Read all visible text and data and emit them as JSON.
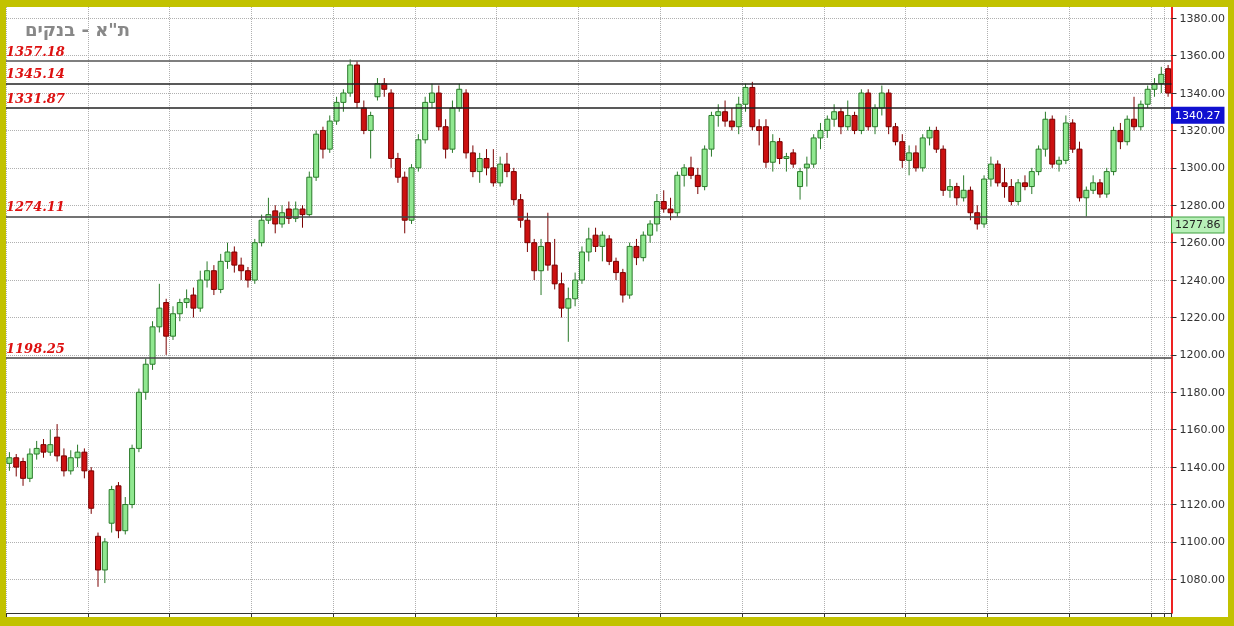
{
  "chart_data": {
    "type": "candlestick",
    "title": "ת\"א - בנקים",
    "categories": [
      null,
      null,
      null,
      null,
      null,
      null,
      null,
      null,
      null,
      null,
      null,
      null,
      null,
      null,
      null,
      null,
      null,
      null,
      null,
      null,
      null,
      null,
      null,
      null,
      null,
      null,
      null,
      null,
      null,
      null,
      null,
      null,
      null,
      null,
      null,
      null,
      null,
      null,
      null,
      null,
      null,
      null,
      null,
      null,
      null,
      null,
      null,
      null,
      null,
      null,
      null,
      null,
      null,
      null,
      null,
      null,
      null,
      null,
      null,
      null,
      null,
      null,
      null,
      null,
      null,
      null,
      null,
      null,
      null,
      null,
      null,
      null,
      null,
      null,
      null,
      null,
      null,
      null,
      null,
      null,
      null,
      null,
      null,
      null,
      null,
      null,
      null,
      null,
      null,
      null,
      null,
      null,
      null,
      null,
      null,
      null,
      null,
      null,
      null,
      null,
      null,
      null,
      null,
      null,
      null,
      null,
      null,
      null,
      null,
      null,
      null,
      null,
      null,
      null,
      null,
      null,
      null,
      null,
      null,
      null,
      null,
      null,
      null,
      null,
      null,
      null,
      null,
      null,
      null,
      null,
      null,
      null,
      null,
      null,
      null,
      null,
      null,
      null,
      null,
      null,
      null,
      null,
      null,
      null,
      null,
      null,
      null,
      null,
      null,
      null,
      null,
      null,
      null,
      null,
      null,
      null,
      null,
      null,
      null,
      null,
      null,
      null,
      null,
      null,
      null,
      null,
      null,
      null,
      null,
      null,
      null
    ],
    "ohlc": [
      [
        1142,
        1148,
        1138,
        1145
      ],
      [
        1145,
        1147,
        1135,
        1140
      ],
      [
        1143,
        1145,
        1130,
        1134
      ],
      [
        1134,
        1150,
        1132,
        1147
      ],
      [
        1147,
        1154,
        1144,
        1150
      ],
      [
        1152,
        1155,
        1145,
        1148
      ],
      [
        1148,
        1160,
        1146,
        1152
      ],
      [
        1156,
        1163,
        1143,
        1146
      ],
      [
        1146,
        1150,
        1135,
        1138
      ],
      [
        1138,
        1149,
        1136,
        1145
      ],
      [
        1145,
        1152,
        1140,
        1148
      ],
      [
        1148,
        1150,
        1134,
        1138
      ],
      [
        1138,
        1140,
        1115,
        1118
      ],
      [
        1103,
        1105,
        1076,
        1085
      ],
      [
        1085,
        1102,
        1078,
        1100
      ],
      [
        1110,
        1130,
        1105,
        1128
      ],
      [
        1130,
        1132,
        1102,
        1106
      ],
      [
        1106,
        1124,
        1104,
        1120
      ],
      [
        1120,
        1152,
        1118,
        1150
      ],
      [
        1150,
        1182,
        1148,
        1180
      ],
      [
        1180,
        1198,
        1176,
        1195
      ],
      [
        1195,
        1218,
        1192,
        1215
      ],
      [
        1215,
        1238,
        1212,
        1225
      ],
      [
        1228,
        1230,
        1200,
        1210
      ],
      [
        1210,
        1226,
        1208,
        1222
      ],
      [
        1222,
        1230,
        1218,
        1228
      ],
      [
        1228,
        1235,
        1225,
        1230
      ],
      [
        1232,
        1236,
        1220,
        1225
      ],
      [
        1225,
        1245,
        1223,
        1240
      ],
      [
        1240,
        1250,
        1236,
        1245
      ],
      [
        1245,
        1248,
        1232,
        1235
      ],
      [
        1235,
        1254,
        1233,
        1250
      ],
      [
        1250,
        1260,
        1246,
        1255
      ],
      [
        1255,
        1258,
        1244,
        1248
      ],
      [
        1248,
        1252,
        1240,
        1245
      ],
      [
        1245,
        1247,
        1236,
        1240
      ],
      [
        1240,
        1262,
        1238,
        1260
      ],
      [
        1260,
        1275,
        1258,
        1272
      ],
      [
        1272,
        1284,
        1270,
        1275
      ],
      [
        1277,
        1280,
        1265,
        1270
      ],
      [
        1270,
        1280,
        1268,
        1276
      ],
      [
        1278,
        1282,
        1270,
        1273
      ],
      [
        1273,
        1282,
        1271,
        1278
      ],
      [
        1278,
        1280,
        1268,
        1275
      ],
      [
        1275,
        1298,
        1274,
        1295
      ],
      [
        1295,
        1320,
        1293,
        1318
      ],
      [
        1320,
        1322,
        1305,
        1310
      ],
      [
        1310,
        1328,
        1308,
        1325
      ],
      [
        1325,
        1338,
        1323,
        1335
      ],
      [
        1335,
        1342,
        1330,
        1340
      ],
      [
        1340,
        1358,
        1338,
        1355
      ],
      [
        1355,
        1357,
        1332,
        1335
      ],
      [
        1332,
        1336,
        1318,
        1320
      ],
      [
        1320,
        1330,
        1305,
        1328
      ],
      [
        1338,
        1348,
        1336,
        1345
      ],
      [
        1345,
        1348,
        1338,
        1342
      ],
      [
        1340,
        1342,
        1300,
        1305
      ],
      [
        1305,
        1308,
        1292,
        1295
      ],
      [
        1295,
        1298,
        1265,
        1272
      ],
      [
        1272,
        1302,
        1270,
        1300
      ],
      [
        1300,
        1318,
        1298,
        1315
      ],
      [
        1315,
        1338,
        1313,
        1335
      ],
      [
        1335,
        1345,
        1332,
        1340
      ],
      [
        1340,
        1344,
        1320,
        1322
      ],
      [
        1322,
        1326,
        1305,
        1310
      ],
      [
        1310,
        1336,
        1308,
        1332
      ],
      [
        1332,
        1345,
        1330,
        1342
      ],
      [
        1340,
        1342,
        1305,
        1308
      ],
      [
        1308,
        1312,
        1295,
        1298
      ],
      [
        1298,
        1308,
        1292,
        1305
      ],
      [
        1305,
        1310,
        1296,
        1300
      ],
      [
        1300,
        1310,
        1290,
        1292
      ],
      [
        1292,
        1306,
        1290,
        1302
      ],
      [
        1302,
        1308,
        1295,
        1298
      ],
      [
        1298,
        1300,
        1280,
        1283
      ],
      [
        1283,
        1286,
        1268,
        1272
      ],
      [
        1272,
        1276,
        1255,
        1260
      ],
      [
        1260,
        1262,
        1240,
        1245
      ],
      [
        1245,
        1262,
        1232,
        1258
      ],
      [
        1260,
        1276,
        1245,
        1248
      ],
      [
        1248,
        1262,
        1235,
        1238
      ],
      [
        1238,
        1244,
        1220,
        1225
      ],
      [
        1225,
        1236,
        1207,
        1230
      ],
      [
        1230,
        1244,
        1226,
        1240
      ],
      [
        1240,
        1258,
        1238,
        1255
      ],
      [
        1255,
        1268,
        1250,
        1262
      ],
      [
        1264,
        1268,
        1255,
        1258
      ],
      [
        1258,
        1266,
        1250,
        1264
      ],
      [
        1262,
        1264,
        1248,
        1250
      ],
      [
        1250,
        1252,
        1240,
        1244
      ],
      [
        1244,
        1246,
        1228,
        1232
      ],
      [
        1232,
        1260,
        1230,
        1258
      ],
      [
        1258,
        1262,
        1248,
        1252
      ],
      [
        1252,
        1266,
        1250,
        1264
      ],
      [
        1264,
        1272,
        1260,
        1270
      ],
      [
        1270,
        1286,
        1266,
        1282
      ],
      [
        1282,
        1288,
        1276,
        1278
      ],
      [
        1278,
        1284,
        1272,
        1276
      ],
      [
        1276,
        1298,
        1274,
        1296
      ],
      [
        1296,
        1302,
        1290,
        1300
      ],
      [
        1300,
        1306,
        1294,
        1296
      ],
      [
        1296,
        1300,
        1286,
        1290
      ],
      [
        1290,
        1312,
        1288,
        1310
      ],
      [
        1310,
        1330,
        1306,
        1328
      ],
      [
        1328,
        1334,
        1322,
        1330
      ],
      [
        1330,
        1336,
        1322,
        1325
      ],
      [
        1325,
        1332,
        1320,
        1322
      ],
      [
        1322,
        1338,
        1318,
        1334
      ],
      [
        1334,
        1345,
        1330,
        1343
      ],
      [
        1343,
        1346,
        1320,
        1322
      ],
      [
        1322,
        1326,
        1312,
        1320
      ],
      [
        1322,
        1326,
        1300,
        1303
      ],
      [
        1303,
        1318,
        1298,
        1314
      ],
      [
        1314,
        1316,
        1302,
        1305
      ],
      [
        1305,
        1308,
        1298,
        1306
      ],
      [
        1308,
        1310,
        1300,
        1302
      ],
      [
        1290,
        1300,
        1283,
        1298
      ],
      [
        1300,
        1306,
        1290,
        1302
      ],
      [
        1302,
        1318,
        1300,
        1316
      ],
      [
        1316,
        1324,
        1310,
        1320
      ],
      [
        1320,
        1328,
        1316,
        1326
      ],
      [
        1326,
        1334,
        1322,
        1330
      ],
      [
        1330,
        1332,
        1318,
        1322
      ],
      [
        1322,
        1336,
        1320,
        1328
      ],
      [
        1328,
        1330,
        1318,
        1320
      ],
      [
        1320,
        1342,
        1318,
        1340
      ],
      [
        1340,
        1342,
        1320,
        1322
      ],
      [
        1322,
        1334,
        1318,
        1332
      ],
      [
        1332,
        1344,
        1328,
        1340
      ],
      [
        1340,
        1342,
        1318,
        1322
      ],
      [
        1322,
        1324,
        1312,
        1314
      ],
      [
        1314,
        1318,
        1300,
        1304
      ],
      [
        1304,
        1312,
        1296,
        1308
      ],
      [
        1308,
        1312,
        1298,
        1300
      ],
      [
        1300,
        1318,
        1298,
        1316
      ],
      [
        1316,
        1322,
        1312,
        1320
      ],
      [
        1320,
        1322,
        1308,
        1310
      ],
      [
        1310,
        1312,
        1285,
        1288
      ],
      [
        1288,
        1294,
        1284,
        1290
      ],
      [
        1290,
        1292,
        1280,
        1284
      ],
      [
        1284,
        1296,
        1282,
        1288
      ],
      [
        1288,
        1290,
        1272,
        1276
      ],
      [
        1276,
        1280,
        1267,
        1270
      ],
      [
        1270,
        1296,
        1268,
        1294
      ],
      [
        1294,
        1306,
        1290,
        1302
      ],
      [
        1302,
        1304,
        1290,
        1292
      ],
      [
        1292,
        1300,
        1284,
        1290
      ],
      [
        1290,
        1294,
        1280,
        1282
      ],
      [
        1282,
        1294,
        1280,
        1292
      ],
      [
        1292,
        1296,
        1288,
        1290
      ],
      [
        1290,
        1300,
        1286,
        1298
      ],
      [
        1298,
        1312,
        1296,
        1310
      ],
      [
        1310,
        1330,
        1306,
        1326
      ],
      [
        1326,
        1328,
        1300,
        1302
      ],
      [
        1302,
        1306,
        1298,
        1304
      ],
      [
        1304,
        1328,
        1302,
        1324
      ],
      [
        1324,
        1326,
        1308,
        1310
      ],
      [
        1310,
        1314,
        1282,
        1284
      ],
      [
        1284,
        1290,
        1274,
        1288
      ],
      [
        1288,
        1296,
        1286,
        1292
      ],
      [
        1292,
        1294,
        1284,
        1286
      ],
      [
        1286,
        1300,
        1284,
        1298
      ],
      [
        1298,
        1322,
        1296,
        1320
      ],
      [
        1320,
        1324,
        1310,
        1314
      ],
      [
        1314,
        1328,
        1312,
        1326
      ],
      [
        1326,
        1338,
        1320,
        1322
      ],
      [
        1322,
        1336,
        1320,
        1334
      ],
      [
        1334,
        1344,
        1332,
        1342
      ],
      [
        1342,
        1348,
        1338,
        1345
      ],
      [
        1345,
        1354,
        1340,
        1350
      ],
      [
        1353,
        1355,
        1338,
        1340
      ]
    ],
    "ylim": [
      1062,
      1386
    ],
    "yticks": [
      {
        "value": 1080,
        "label": "1080.00"
      },
      {
        "value": 1100,
        "label": "1100.00"
      },
      {
        "value": 1120,
        "label": "1120.00"
      },
      {
        "value": 1140,
        "label": "1140.00"
      },
      {
        "value": 1160,
        "label": "1160.00"
      },
      {
        "value": 1180,
        "label": "1180.00"
      },
      {
        "value": 1200,
        "label": "1200.00"
      },
      {
        "value": 1220,
        "label": "1220.00"
      },
      {
        "value": 1240,
        "label": "1240.00"
      },
      {
        "value": 1260,
        "label": "1260.00"
      },
      {
        "value": 1280,
        "label": "1280.00"
      },
      {
        "value": 1300,
        "label": "1300.00"
      },
      {
        "value": 1320,
        "label": "1320.00"
      },
      {
        "value": 1340,
        "label": "1340.00"
      },
      {
        "value": 1360,
        "label": "1360.00"
      },
      {
        "value": 1380,
        "label": "1380.00"
      }
    ],
    "ref_lines": [
      {
        "axis": "y",
        "value": 1357.18,
        "label": "1357.18",
        "color": "#555555"
      },
      {
        "axis": "y",
        "value": 1345.14,
        "label": "1345.14",
        "color": "#222222"
      },
      {
        "axis": "y",
        "value": 1331.87,
        "label": "1331.87",
        "color": "#222222"
      },
      {
        "axis": "y",
        "value": 1274.11,
        "label": "1274.11",
        "color": "#444444"
      },
      {
        "axis": "y",
        "value": 1198.25,
        "label": "1198.25",
        "color": "#444444"
      }
    ],
    "annotations": [
      "1340.27",
      "1277.86"
    ],
    "grid": true,
    "tick_labels": "y"
  }
}
